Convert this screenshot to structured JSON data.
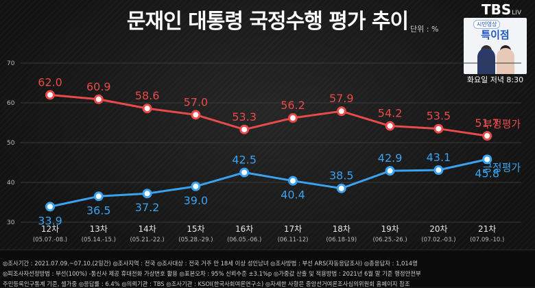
{
  "header": {
    "title": "문재인 대통령 국정수행 평가 추이",
    "unit": "단위 : %",
    "logo": "TBS",
    "logo_suffix": "LIV"
  },
  "promo": {
    "tag": "시민영상",
    "name": "특이점",
    "time": "화요일 저녁 8:30"
  },
  "chart_data": {
    "type": "line",
    "categories": [
      "12차",
      "13차",
      "14차",
      "15차",
      "16차",
      "17차",
      "18차",
      "19차",
      "20차",
      "21차"
    ],
    "sub_labels": [
      "(05.07.-08.)",
      "(05.14.-15.)",
      "(05.21.-22.)",
      "(05.28.-29.)",
      "(06.05.-06.)",
      "(06.11-12)",
      "(06.18-19)",
      "(06.25.-26.)",
      "(07.02.-03.)",
      "(07.09.-10.)"
    ],
    "series": [
      {
        "name": "부정평가",
        "color": "#e94a4a",
        "values": [
          62.0,
          60.9,
          58.6,
          57.0,
          53.3,
          56.2,
          57.9,
          54.2,
          53.5,
          51.7
        ]
      },
      {
        "name": "긍정평가",
        "color": "#3aa3f0",
        "values": [
          33.9,
          36.5,
          37.2,
          39.0,
          42.5,
          40.4,
          38.5,
          42.9,
          43.1,
          45.8
        ]
      }
    ],
    "yticks": [
      30,
      40,
      50,
      60,
      70
    ],
    "ylim": [
      30,
      70
    ],
    "grid": true
  },
  "footer": {
    "line1": "◎조사기간 : 2021.07.09.~07.10.(2일간)  ◎조사지역 : 전국  ◎조사대상 : 전국 거주 만 18세 이상 성인남녀  ◎조사방법 : 부선 ARS(자동응답조사)  ◎총응답자 : 1,014명",
    "line2": "◎피조사자선정방법 : 부선(100%) -통신사 제공 휴대전화 가상번호 활용  ◎표본오차 : 95% 신뢰수준 ±3.1%p  ◎가중값 산출 및 적용방법 : 2021년 6월 말 기준 행정안전부",
    "line3": "주민등록인구통계 기준, 셀가중  ◎응답률 : 6.4%  ◎의뢰기관 : TBS  ◎조사기관 : KSOI(한국사회여론연구소)  ◎자세한 사항은 중앙선거여론조사심의위원회 홈페이지 참조"
  }
}
